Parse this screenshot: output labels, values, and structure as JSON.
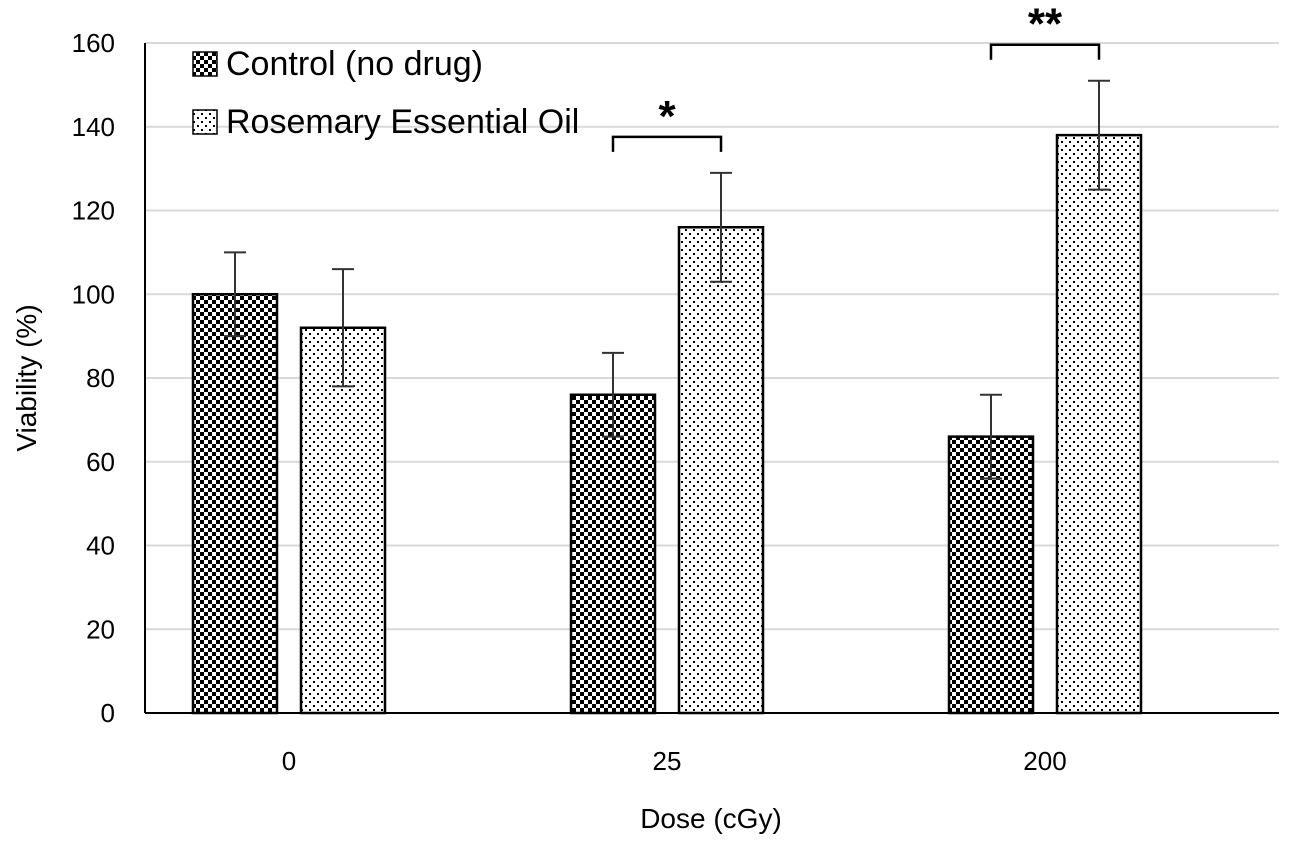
{
  "chart_data": {
    "type": "bar",
    "categories": [
      "0",
      "25",
      "200"
    ],
    "series": [
      {
        "name": "Control (no drug)",
        "values": [
          100,
          76,
          66
        ],
        "errors": [
          10,
          10,
          10
        ],
        "pattern": "dense-dots"
      },
      {
        "name": "Rosemary Essential Oil",
        "values": [
          92,
          116,
          138
        ],
        "errors": [
          14,
          13,
          13
        ],
        "pattern": "sparse-dots"
      }
    ],
    "title": "",
    "xlabel": "Dose (cGy)",
    "ylabel": "Viability (%)",
    "ylim": [
      0,
      160
    ],
    "yticks": [
      0,
      20,
      40,
      60,
      80,
      100,
      120,
      140,
      160
    ],
    "grid": true,
    "legend_position": "top-left",
    "annotations": [
      {
        "category": "25",
        "label": "*"
      },
      {
        "category": "200",
        "label": "**"
      }
    ],
    "colors": {
      "bar_fill": "#ffffff",
      "bar_outline": "#000000",
      "grid": "#d9d9d9",
      "axis": "#000000"
    }
  }
}
